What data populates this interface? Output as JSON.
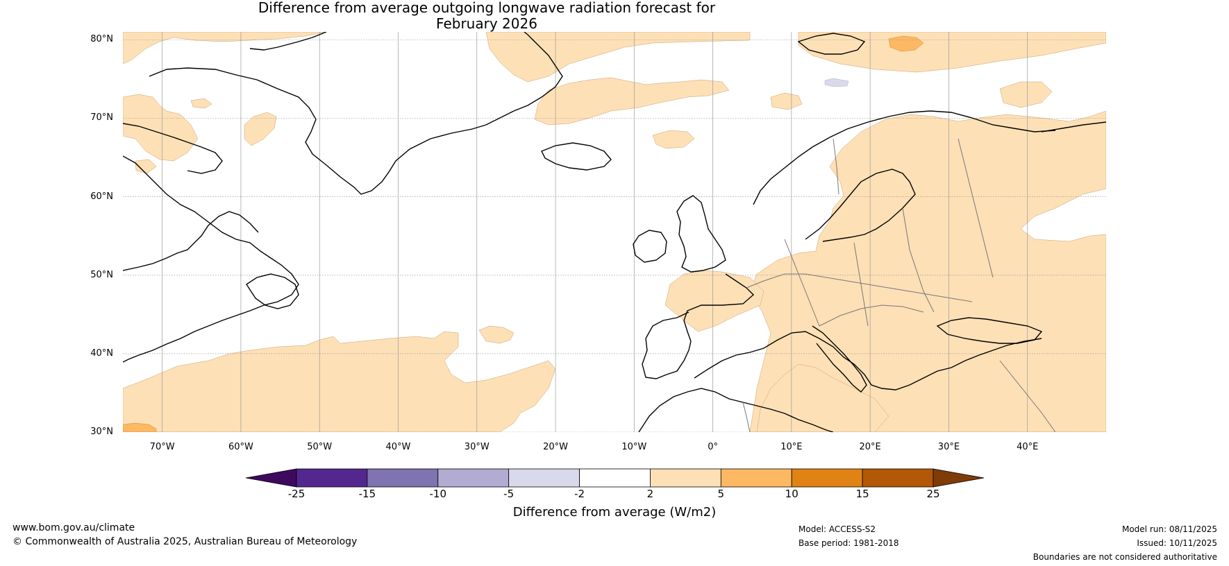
{
  "title": {
    "line1": "Difference from average outgoing longwave radiation forecast for",
    "line2": "February 2026"
  },
  "map": {
    "lat_labels": [
      "80°N",
      "70°N",
      "60°N",
      "50°N",
      "40°N",
      "30°N"
    ],
    "lon_labels": [
      "70°W",
      "60°W",
      "50°W",
      "40°W",
      "30°W",
      "20°W",
      "10°W",
      "0°",
      "10°E",
      "20°E",
      "30°E",
      "40°E"
    ],
    "lat_range": [
      30,
      81
    ],
    "lon_range": [
      -75,
      50
    ]
  },
  "colorbar": {
    "ticks": [
      "-25",
      "-15",
      "-10",
      "-5",
      "-2",
      "2",
      "5",
      "10",
      "15",
      "25"
    ],
    "colors": [
      "#3f0a5e",
      "#54278f",
      "#7f73b0",
      "#b2abd2",
      "#d8daeb",
      "#ffffff",
      "#fde0b6",
      "#fdb863",
      "#e08214",
      "#b35806",
      "#7f3b08"
    ],
    "label": "Difference from average (W/m2)"
  },
  "footer": {
    "url": "www.bom.gov.au/climate",
    "copyright": "© Commonwealth of Australia 2025, Australian Bureau of Meteorology",
    "model": "Model: ACCESS-S2",
    "base_period": "Base period: 1981-2018",
    "model_run": "Model run: 08/11/2025",
    "issued": "Issued: 10/11/2025",
    "disclaimer": "Boundaries are not considered authoritative"
  }
}
